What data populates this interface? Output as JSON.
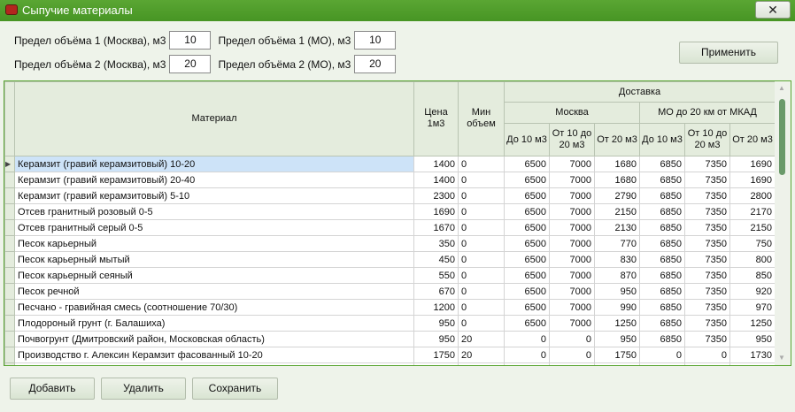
{
  "window": {
    "title": "Сыпучие материалы",
    "close": "✕"
  },
  "limits": [
    {
      "label": "Предел объёма 1 (Москва), м3",
      "value": "10"
    },
    {
      "label": "Предел объёма 1 (МО), м3",
      "value": "10"
    },
    {
      "label": "Предел объёма 2 (Москва), м3",
      "value": "20"
    },
    {
      "label": "Предел объёма 2 (МО), м3",
      "value": "20"
    }
  ],
  "apply": "Применить",
  "headers": {
    "material": "Материал",
    "price": "Цена 1м3",
    "min": "Мин объем",
    "delivery": "Доставка",
    "moscow": "Москва",
    "mo": "МО до 20 км от МКАД",
    "sub": [
      "До 10 м3",
      "От 10 до 20 м3",
      "От 20 м3",
      "До 10 м3",
      "От 10 до 20 м3",
      "От 20 м3"
    ]
  },
  "rows": [
    [
      "Керамзит (гравий керамзитовый) 10-20",
      "1400",
      "0",
      "6500",
      "7000",
      "1680",
      "6850",
      "7350",
      "1690"
    ],
    [
      "Керамзит (гравий керамзитовый) 20-40",
      "1400",
      "0",
      "6500",
      "7000",
      "1680",
      "6850",
      "7350",
      "1690"
    ],
    [
      "Керамзит (гравий керамзитовый) 5-10",
      "2300",
      "0",
      "6500",
      "7000",
      "2790",
      "6850",
      "7350",
      "2800"
    ],
    [
      "Отсев гранитный розовый 0-5",
      "1690",
      "0",
      "6500",
      "7000",
      "2150",
      "6850",
      "7350",
      "2170"
    ],
    [
      "Отсев гранитный серый 0-5",
      "1670",
      "0",
      "6500",
      "7000",
      "2130",
      "6850",
      "7350",
      "2150"
    ],
    [
      "Песок карьерный",
      "350",
      "0",
      "6500",
      "7000",
      "770",
      "6850",
      "7350",
      "750"
    ],
    [
      "Песок карьерный мытый",
      "450",
      "0",
      "6500",
      "7000",
      "830",
      "6850",
      "7350",
      "800"
    ],
    [
      "Песок карьерный сеяный",
      "550",
      "0",
      "6500",
      "7000",
      "870",
      "6850",
      "7350",
      "850"
    ],
    [
      "Песок речной",
      "670",
      "0",
      "6500",
      "7000",
      "950",
      "6850",
      "7350",
      "920"
    ],
    [
      "Песчано - гравийная смесь (соотношение 70/30)",
      "1200",
      "0",
      "6500",
      "7000",
      "990",
      "6850",
      "7350",
      "970"
    ],
    [
      "Плодороный грунт (г. Балашиха)",
      "950",
      "0",
      "6500",
      "7000",
      "1250",
      "6850",
      "7350",
      "1250"
    ],
    [
      "Почвогрунт (Дмитровский район, Московская область)",
      "950",
      "20",
      "0",
      "0",
      "950",
      "6850",
      "7350",
      "950"
    ],
    [
      "Производство г. Алексин Керамзит фасованный 10-20",
      "1750",
      "20",
      "0",
      "0",
      "1750",
      "0",
      "0",
      "1730"
    ]
  ],
  "buttons": {
    "add": "Добавить",
    "delete": "Удалить",
    "save": "Сохранить"
  }
}
